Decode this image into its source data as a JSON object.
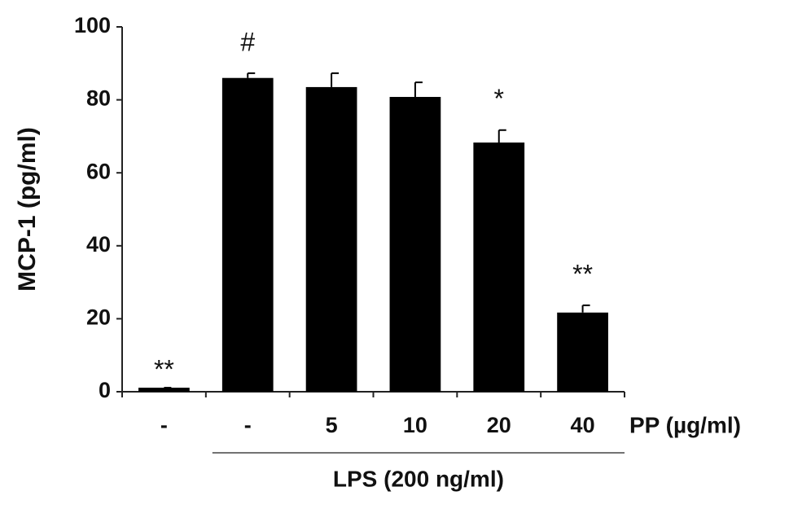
{
  "chart_data": {
    "type": "bar",
    "y_label": "MCP-1 (pg/ml)",
    "x_label": "PP (µg/ml)",
    "group_label": "LPS (200 ng/ml)",
    "categories": [
      "-",
      "-",
      "5",
      "10",
      "20",
      "40"
    ],
    "values": [
      1.1,
      86,
      83.5,
      80.8,
      68.3,
      21.7
    ],
    "errors": [
      0,
      1.3,
      3.8,
      4,
      3.4,
      2
    ],
    "annotations": [
      "**",
      "#",
      null,
      null,
      "*",
      "**"
    ],
    "color": "#000000",
    "ylim": [
      0,
      100
    ],
    "yticks": [
      0,
      20,
      40,
      60,
      80,
      100
    ]
  }
}
